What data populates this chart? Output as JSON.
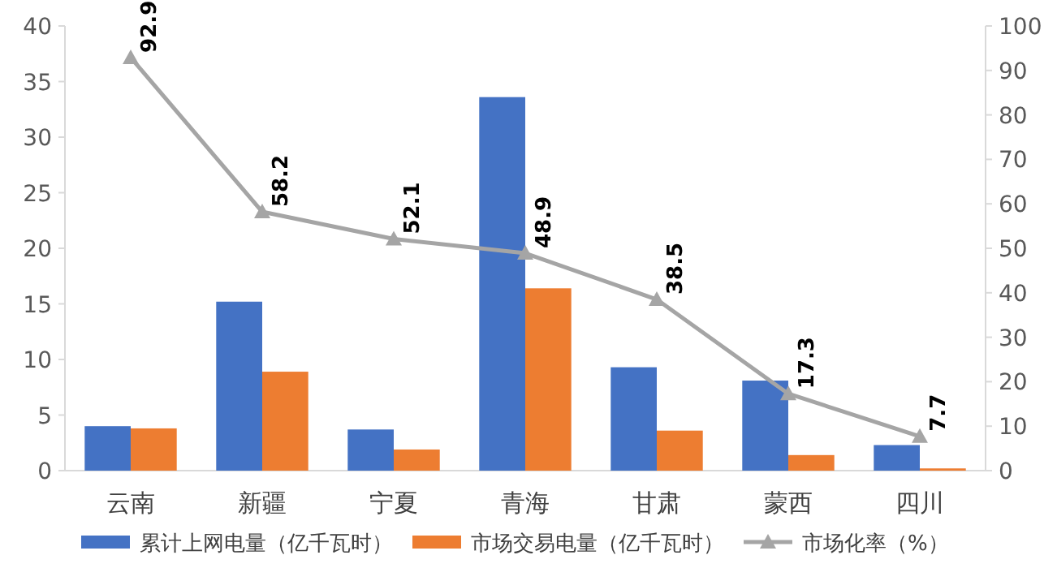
{
  "chart_data": {
    "type": "bar",
    "categories": [
      "云南",
      "新疆",
      "宁夏",
      "青海",
      "甘肃",
      "蒙西",
      "四川"
    ],
    "series": [
      {
        "name": "累计上网电量（亿千瓦时）",
        "color": "#4472c4",
        "values": [
          4.0,
          15.2,
          3.7,
          33.6,
          9.3,
          8.1,
          2.3
        ]
      },
      {
        "name": "市场交易电量（亿千瓦时）",
        "color": "#ed7d31",
        "values": [
          3.8,
          8.9,
          1.9,
          16.4,
          3.6,
          1.4,
          0.2
        ]
      },
      {
        "name": "市场化率（%）",
        "type": "line",
        "axis": "y2",
        "color": "#a5a5a5",
        "marker": "triangle",
        "data_labels": true,
        "values": [
          92.9,
          58.2,
          52.1,
          48.9,
          38.5,
          17.3,
          7.7
        ]
      }
    ],
    "ylim": [
      0,
      40
    ],
    "yticks": [
      0,
      5,
      10,
      15,
      20,
      25,
      30,
      35,
      40
    ],
    "y2lim": [
      0,
      100
    ],
    "y2ticks": [
      0,
      10,
      20,
      30,
      40,
      50,
      60,
      70,
      80,
      90,
      100
    ],
    "legend": "bottom"
  }
}
